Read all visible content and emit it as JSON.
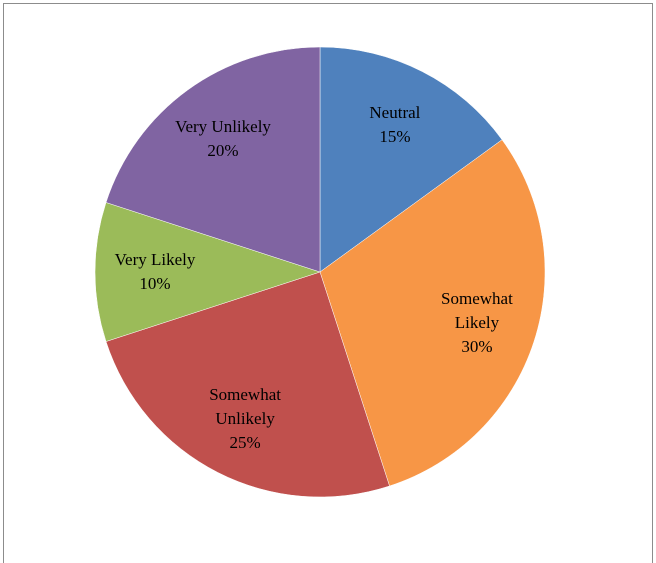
{
  "chart_data": {
    "type": "pie",
    "categories": [
      "Neutral",
      "Somewhat Likely",
      "Somewhat Unlikely",
      "Very Likely",
      "Very Unlikely"
    ],
    "values": [
      15,
      30,
      25,
      10,
      20
    ],
    "value_labels": [
      "15%",
      "30%",
      "25%",
      "10%",
      "20%"
    ],
    "colors": [
      "#4f81bd",
      "#f79646",
      "#c0504d",
      "#9bbb59",
      "#8064a2"
    ]
  }
}
